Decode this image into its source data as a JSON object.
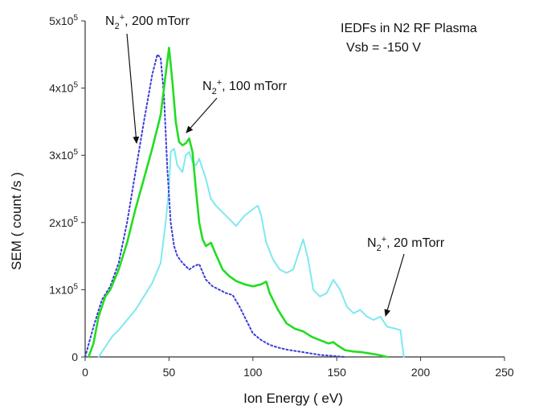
{
  "chart_data": {
    "type": "line",
    "title_lines": [
      "IEDFs in N2 RF Plasma",
      "Vsb = -150 V"
    ],
    "xlabel": "Ion Energy ( eV)",
    "ylabel": "SEM ( count /s )",
    "xlim": [
      0,
      250
    ],
    "ylim": [
      0,
      500000
    ],
    "xticks": [
      0,
      50,
      100,
      150,
      200,
      250
    ],
    "xtick_labels": [
      "0",
      "50",
      "100",
      "150",
      "200",
      "250"
    ],
    "yticks": [
      0,
      100000,
      200000,
      300000,
      400000,
      500000
    ],
    "ytick_labels": [
      {
        "mant": "0",
        "exp": ""
      },
      {
        "mant": "1x10",
        "exp": "5"
      },
      {
        "mant": "2x10",
        "exp": "5"
      },
      {
        "mant": "3x10",
        "exp": "5"
      },
      {
        "mant": "4x10",
        "exp": "5"
      },
      {
        "mant": "5x10",
        "exp": "5"
      }
    ],
    "grid": false,
    "series": [
      {
        "label": {
          "base": "N",
          "sub": "2",
          "sup": "+",
          "rest": ", 200 mTorr"
        },
        "color": "#3b3bd6",
        "style": "dotted",
        "x": [
          0,
          5,
          10,
          15,
          20,
          25,
          30,
          35,
          40,
          43,
          45,
          47,
          49,
          51,
          53,
          55,
          58,
          62,
          65,
          68,
          72,
          76,
          80,
          84,
          88,
          92,
          96,
          100,
          105,
          110,
          115,
          120,
          125,
          130,
          135,
          140,
          145,
          150,
          155
        ],
        "y": [
          0,
          45000,
          85000,
          105000,
          140000,
          200000,
          275000,
          350000,
          420000,
          450000,
          445000,
          390000,
          280000,
          200000,
          165000,
          150000,
          140000,
          130000,
          135000,
          138000,
          115000,
          105000,
          100000,
          95000,
          92000,
          75000,
          55000,
          35000,
          25000,
          18000,
          14000,
          11000,
          9000,
          7000,
          5000,
          3000,
          2000,
          1000,
          0
        ]
      },
      {
        "label": {
          "base": "N",
          "sub": "2",
          "sup": "+",
          "rest": ", 100 mTorr"
        },
        "color": "#22dd22",
        "style": "solid",
        "x": [
          2,
          5,
          8,
          12,
          15,
          20,
          25,
          30,
          35,
          40,
          45,
          48,
          50,
          52,
          54,
          56,
          58,
          60,
          62,
          64,
          66,
          68,
          70,
          72,
          75,
          78,
          82,
          86,
          90,
          95,
          100,
          105,
          108,
          110,
          115,
          120,
          125,
          130,
          135,
          140,
          145,
          148,
          150,
          155,
          160,
          165,
          170,
          175,
          180
        ],
        "y": [
          0,
          20000,
          60000,
          90000,
          100000,
          130000,
          170000,
          220000,
          265000,
          310000,
          360000,
          420000,
          460000,
          410000,
          350000,
          320000,
          315000,
          318000,
          325000,
          305000,
          250000,
          200000,
          175000,
          165000,
          170000,
          152000,
          130000,
          120000,
          113000,
          108000,
          105000,
          108000,
          112000,
          95000,
          70000,
          50000,
          42000,
          38000,
          30000,
          25000,
          20000,
          22000,
          18000,
          10000,
          8000,
          7000,
          5000,
          3000,
          0
        ]
      },
      {
        "label": {
          "base": "N",
          "sub": "2",
          "sup": "+",
          "rest": ", 20 mTorr"
        },
        "color": "#7fe8f0",
        "style": "solid",
        "x": [
          8,
          12,
          16,
          20,
          25,
          30,
          35,
          40,
          45,
          48,
          50,
          51,
          53,
          55,
          58,
          60,
          62,
          64,
          66,
          68,
          70,
          72,
          75,
          78,
          82,
          86,
          90,
          95,
          100,
          103,
          105,
          108,
          112,
          116,
          120,
          124,
          128,
          130,
          133,
          136,
          140,
          144,
          148,
          152,
          156,
          160,
          164,
          168,
          172,
          176,
          180,
          185,
          188,
          190
        ],
        "y": [
          0,
          15000,
          30000,
          40000,
          55000,
          70000,
          90000,
          110000,
          140000,
          200000,
          250000,
          305000,
          310000,
          285000,
          275000,
          300000,
          305000,
          290000,
          285000,
          295000,
          280000,
          265000,
          235000,
          225000,
          215000,
          205000,
          195000,
          210000,
          220000,
          225000,
          210000,
          170000,
          145000,
          130000,
          125000,
          130000,
          160000,
          175000,
          145000,
          100000,
          90000,
          95000,
          115000,
          100000,
          75000,
          65000,
          70000,
          60000,
          55000,
          60000,
          45000,
          42000,
          40000,
          0
        ]
      }
    ]
  }
}
